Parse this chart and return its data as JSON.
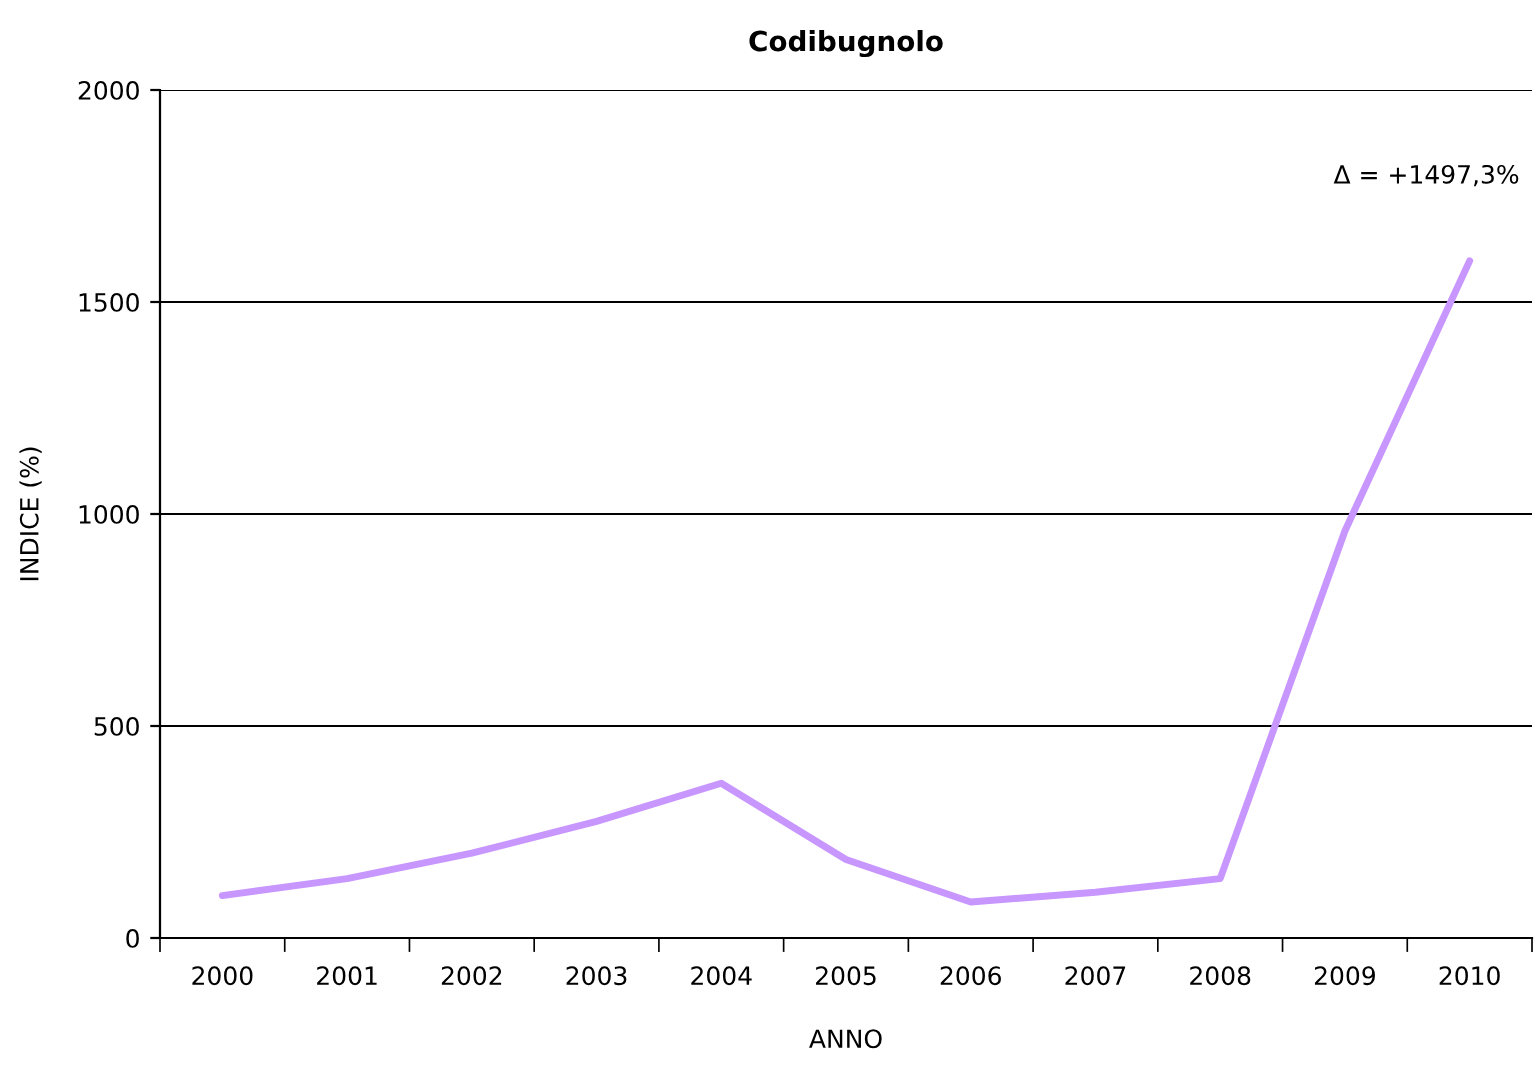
{
  "chart_data": {
    "type": "line",
    "title": "Codibugnolo",
    "xlabel": "ANNO",
    "ylabel": "INDICE (%)",
    "categories": [
      "2000",
      "2001",
      "2002",
      "2003",
      "2004",
      "2005",
      "2006",
      "2007",
      "2008",
      "2009",
      "2010"
    ],
    "series": [
      {
        "color": "#c896ff",
        "values": [
          100,
          140,
          200,
          275,
          365,
          185,
          85,
          108,
          140,
          960,
          1597
        ]
      }
    ],
    "ylim": [
      0,
      2000
    ],
    "yticks": [
      0,
      500,
      1000,
      1500,
      2000
    ],
    "grid": "y",
    "marker": "none",
    "line_style": "solid",
    "annotations": [
      {
        "text": "Δ = +1497,3%",
        "x": "2010",
        "y": 1597
      }
    ]
  }
}
